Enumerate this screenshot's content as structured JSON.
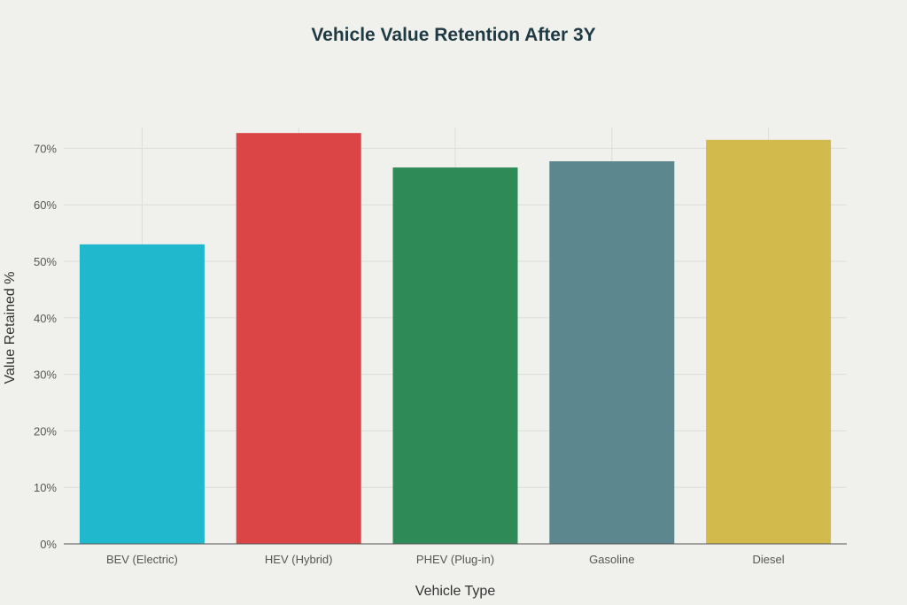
{
  "chart_data": {
    "type": "bar",
    "title": "Vehicle Value Retention After 3Y",
    "xlabel": "Vehicle Type",
    "ylabel": "Value Retained %",
    "categories": [
      "BEV (Electric)",
      "HEV (Hybrid)",
      "PHEV (Plug-in)",
      "Gasoline",
      "Diesel"
    ],
    "values": [
      53.0,
      72.7,
      66.6,
      67.7,
      71.5
    ],
    "colors": [
      "#1fb8cd",
      "#db4545",
      "#2e8b57",
      "#5d878f",
      "#d2ba4c"
    ],
    "ylim": [
      0,
      76
    ],
    "yticks": [
      0,
      10,
      20,
      30,
      40,
      50,
      60,
      70
    ],
    "ytick_labels": [
      "0%",
      "10%",
      "20%",
      "30%",
      "40%",
      "50%",
      "60%",
      "70%"
    ],
    "grid": true,
    "legend": "none"
  }
}
